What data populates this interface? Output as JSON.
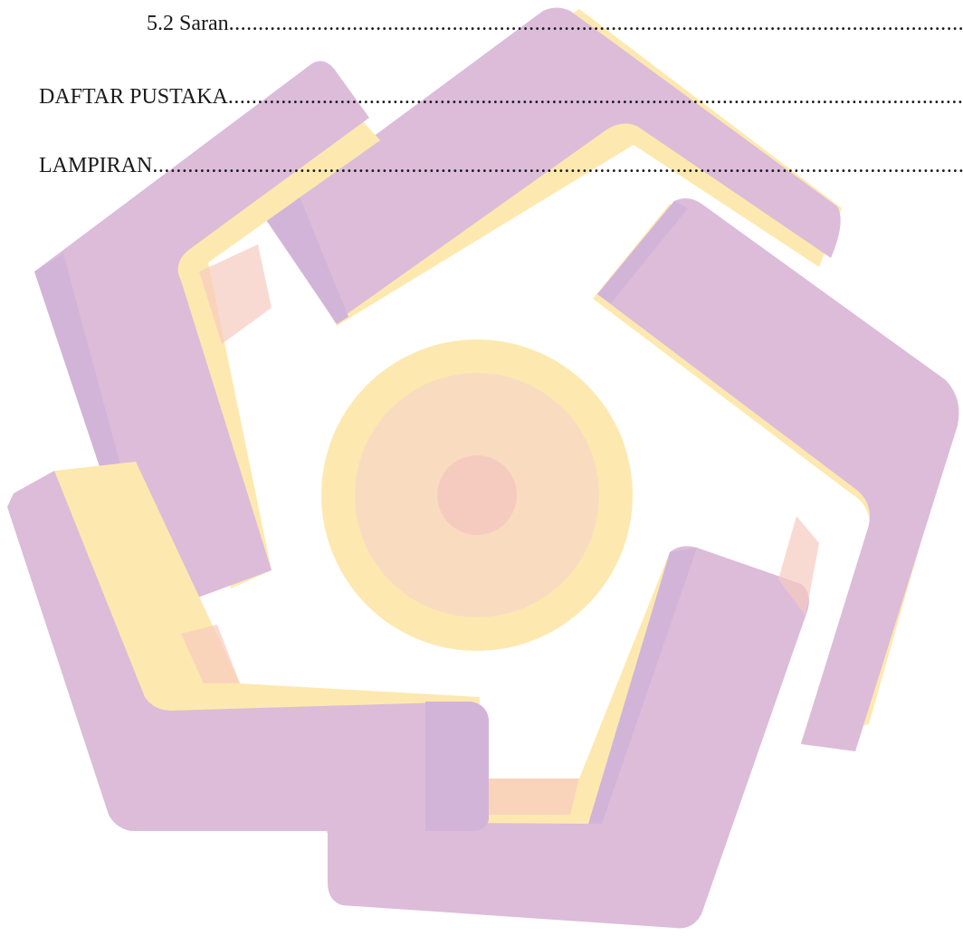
{
  "toc": {
    "entries": [
      {
        "title": "5.2 Saran",
        "leader": "................................................................................................................................................"
      },
      {
        "title": "DAFTAR PUSTAKA",
        "leader": "..........................................................................................................................................."
      },
      {
        "title": "LAMPIRAN",
        "leader": "........................................................................................................................................................"
      }
    ]
  },
  "watermark": {
    "icon": "university-logo-watermark",
    "colors": {
      "purple": "#d4b8d9",
      "purple_dark": "#c9aed8",
      "yellow": "#fde9b0",
      "peach": "#f9d5c0",
      "pink": "#f6c8c0"
    }
  }
}
